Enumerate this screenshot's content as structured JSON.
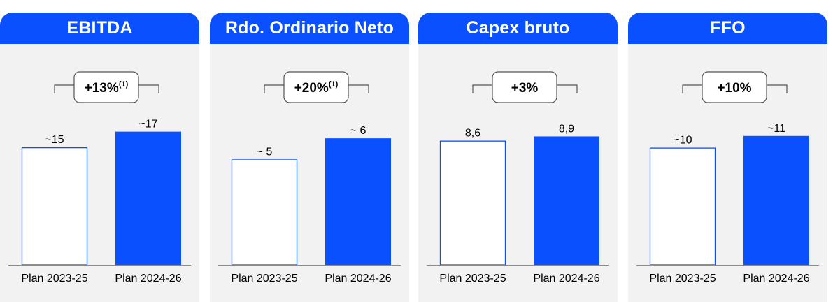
{
  "colors": {
    "accent": "#0a50ff",
    "panel_bg": "#f2f2f2",
    "text": "#000000",
    "bracket": "#555555"
  },
  "chart_data": [
    {
      "type": "bar",
      "title": "EBITDA",
      "categories": [
        "Plan 2023-25",
        "Plan 2024-26"
      ],
      "values": [
        15,
        17
      ],
      "labels": [
        "~15",
        "~17"
      ],
      "change": "+13%",
      "change_note": "(1)",
      "series_styles": [
        "outline",
        "filled"
      ],
      "ylim": [
        0,
        17.5
      ]
    },
    {
      "type": "bar",
      "title": "Rdo. Ordinario Neto",
      "categories": [
        "Plan 2023-25",
        "Plan 2024-26"
      ],
      "values": [
        5,
        6
      ],
      "labels": [
        "~ 5",
        "~ 6"
      ],
      "change": "+20%",
      "change_note": "(1)",
      "series_styles": [
        "outline",
        "filled"
      ],
      "ylim": [
        0,
        6.5
      ]
    },
    {
      "type": "bar",
      "title": "Capex bruto",
      "categories": [
        "Plan 2023-25",
        "Plan 2024-26"
      ],
      "values": [
        8.6,
        8.9
      ],
      "labels": [
        "8,6",
        "8,9"
      ],
      "change": "+3%",
      "change_note": "",
      "series_styles": [
        "outline",
        "filled"
      ],
      "ylim": [
        0,
        9.5
      ]
    },
    {
      "type": "bar",
      "title": "FFO",
      "categories": [
        "Plan 2023-25",
        "Plan 2024-26"
      ],
      "values": [
        10,
        11
      ],
      "labels": [
        "~10",
        "~11"
      ],
      "change": "+10%",
      "change_note": "",
      "series_styles": [
        "outline",
        "filled"
      ],
      "ylim": [
        0,
        11.7
      ]
    }
  ]
}
